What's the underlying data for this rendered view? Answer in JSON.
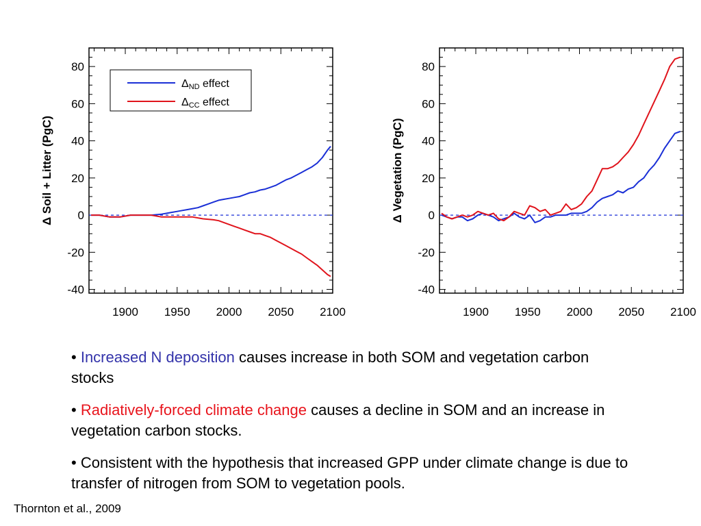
{
  "chart_data": [
    {
      "type": "line",
      "title": "",
      "xlabel": "",
      "ylabel": "Δ Soil + Litter (PgC)",
      "xlim": [
        1865,
        2100
      ],
      "ylim": [
        -42,
        90
      ],
      "xticks": [
        1900,
        1950,
        2000,
        2050,
        2100
      ],
      "xtick_labels": [
        "1900",
        "1950",
        "2000",
        "2050",
        "2100"
      ],
      "yticks": [
        -40,
        -20,
        0,
        20,
        40,
        60,
        80
      ],
      "ytick_labels": [
        "-40",
        "-20",
        "0",
        "20",
        "40",
        "60",
        "80"
      ],
      "zero_line": true,
      "grid": false,
      "legend": {
        "placement": "top-left",
        "entries": [
          {
            "delta": "Δ",
            "sub": "ND",
            "text": "effect",
            "color": "#1a2fd6"
          },
          {
            "delta": "Δ",
            "sub": "CC",
            "text": "effect",
            "color": "#e0141c"
          }
        ]
      },
      "series": [
        {
          "color": "#1a2fd6",
          "x": [
            1867,
            1875,
            1885,
            1895,
            1905,
            1915,
            1925,
            1935,
            1940,
            1945,
            1950,
            1955,
            1960,
            1965,
            1970,
            1975,
            1980,
            1985,
            1990,
            1995,
            2000,
            2005,
            2010,
            2015,
            2020,
            2025,
            2030,
            2035,
            2040,
            2045,
            2050,
            2055,
            2060,
            2065,
            2070,
            2075,
            2080,
            2085,
            2090,
            2095,
            2098
          ],
          "values": [
            0,
            0,
            -1,
            -1,
            0,
            0,
            0,
            0.5,
            1,
            1.5,
            2,
            2.5,
            3,
            3.5,
            4,
            5,
            6,
            7,
            8,
            8.5,
            9,
            9.5,
            10,
            11,
            12,
            12.5,
            13.5,
            14,
            15,
            16,
            17.5,
            19,
            20,
            21.5,
            23,
            24.5,
            26,
            28,
            31,
            35,
            37
          ]
        },
        {
          "color": "#e0141c",
          "x": [
            1867,
            1875,
            1885,
            1895,
            1905,
            1915,
            1925,
            1935,
            1945,
            1955,
            1965,
            1975,
            1985,
            1990,
            1995,
            2000,
            2005,
            2010,
            2015,
            2020,
            2025,
            2030,
            2035,
            2040,
            2045,
            2050,
            2055,
            2060,
            2065,
            2070,
            2075,
            2080,
            2085,
            2090,
            2095,
            2098
          ],
          "values": [
            0,
            0,
            -1,
            -1,
            0,
            0,
            0,
            -1,
            -1,
            -1,
            -1,
            -2,
            -2.5,
            -3,
            -4,
            -5,
            -6,
            -7,
            -8,
            -9,
            -10,
            -10,
            -11,
            -12,
            -13.5,
            -15,
            -16.5,
            -18,
            -19.5,
            -21,
            -23,
            -25,
            -27,
            -29.5,
            -32,
            -33
          ]
        }
      ]
    },
    {
      "type": "line",
      "title": "",
      "xlabel": "",
      "ylabel": "Δ Vegetation (PgC)",
      "xlim": [
        1865,
        2100
      ],
      "ylim": [
        -42,
        90
      ],
      "xticks": [
        1900,
        1950,
        2000,
        2050,
        2100
      ],
      "xtick_labels": [
        "1900",
        "1950",
        "2000",
        "2050",
        "2100"
      ],
      "yticks": [
        -40,
        -20,
        0,
        20,
        40,
        60,
        80
      ],
      "ytick_labels": [
        "-40",
        "-20",
        "0",
        "20",
        "40",
        "60",
        "80"
      ],
      "zero_line": true,
      "grid": false,
      "series": [
        {
          "color": "#1a2fd6",
          "x": [
            1867,
            1872,
            1877,
            1882,
            1887,
            1892,
            1897,
            1902,
            1907,
            1912,
            1917,
            1922,
            1927,
            1932,
            1937,
            1942,
            1947,
            1952,
            1957,
            1962,
            1967,
            1972,
            1977,
            1982,
            1987,
            1992,
            1997,
            2002,
            2007,
            2012,
            2017,
            2022,
            2027,
            2032,
            2037,
            2042,
            2047,
            2052,
            2057,
            2062,
            2067,
            2072,
            2077,
            2082,
            2087,
            2092,
            2097
          ],
          "values": [
            0,
            -1,
            -2,
            -1,
            -1,
            -3,
            -2,
            0,
            1,
            0,
            -1,
            -3,
            -2,
            -1,
            1,
            -1,
            -2,
            0,
            -4,
            -3,
            -1,
            -1,
            0,
            0,
            0,
            1,
            1,
            1,
            2,
            4,
            7,
            9,
            10,
            11,
            13,
            12,
            14,
            15,
            18,
            20,
            24,
            27,
            31,
            36,
            40,
            44,
            45
          ]
        },
        {
          "color": "#e0141c",
          "x": [
            1867,
            1872,
            1877,
            1882,
            1887,
            1892,
            1897,
            1902,
            1907,
            1912,
            1917,
            1922,
            1927,
            1932,
            1937,
            1942,
            1947,
            1952,
            1957,
            1962,
            1967,
            1972,
            1977,
            1982,
            1987,
            1992,
            1997,
            2002,
            2007,
            2012,
            2017,
            2022,
            2027,
            2032,
            2037,
            2042,
            2047,
            2052,
            2057,
            2062,
            2067,
            2072,
            2077,
            2082,
            2087,
            2092,
            2097
          ],
          "values": [
            1,
            -1,
            -2,
            -1,
            0,
            -1,
            0,
            2,
            1,
            0,
            1,
            -2,
            -3,
            -1,
            2,
            1,
            0,
            5,
            4,
            2,
            3,
            0,
            1,
            2,
            6,
            3,
            4,
            6,
            10,
            13,
            19,
            25,
            25,
            26,
            28,
            31,
            34,
            38,
            43,
            49,
            55,
            61,
            67,
            73,
            80,
            84,
            85
          ]
        }
      ]
    }
  ],
  "bullets": [
    {
      "marker": "•",
      "highlight": "Increased N deposition",
      "highlight_color": "#3333aa",
      "rest": "causes increase in both SOM and vegetation carbon stocks"
    },
    {
      "marker": "•",
      "highlight": "Radiatively-forced climate change",
      "highlight_color": "#e8141c",
      "rest": "causes a decline in SOM and an increase in vegetation carbon stocks."
    },
    {
      "marker": "•",
      "highlight": "",
      "highlight_color": "",
      "rest": "Consistent with the hypothesis that increased GPP under climate change is due to transfer of nitrogen from SOM to vegetation pools."
    }
  ],
  "citation": "Thornton et al., 2009"
}
